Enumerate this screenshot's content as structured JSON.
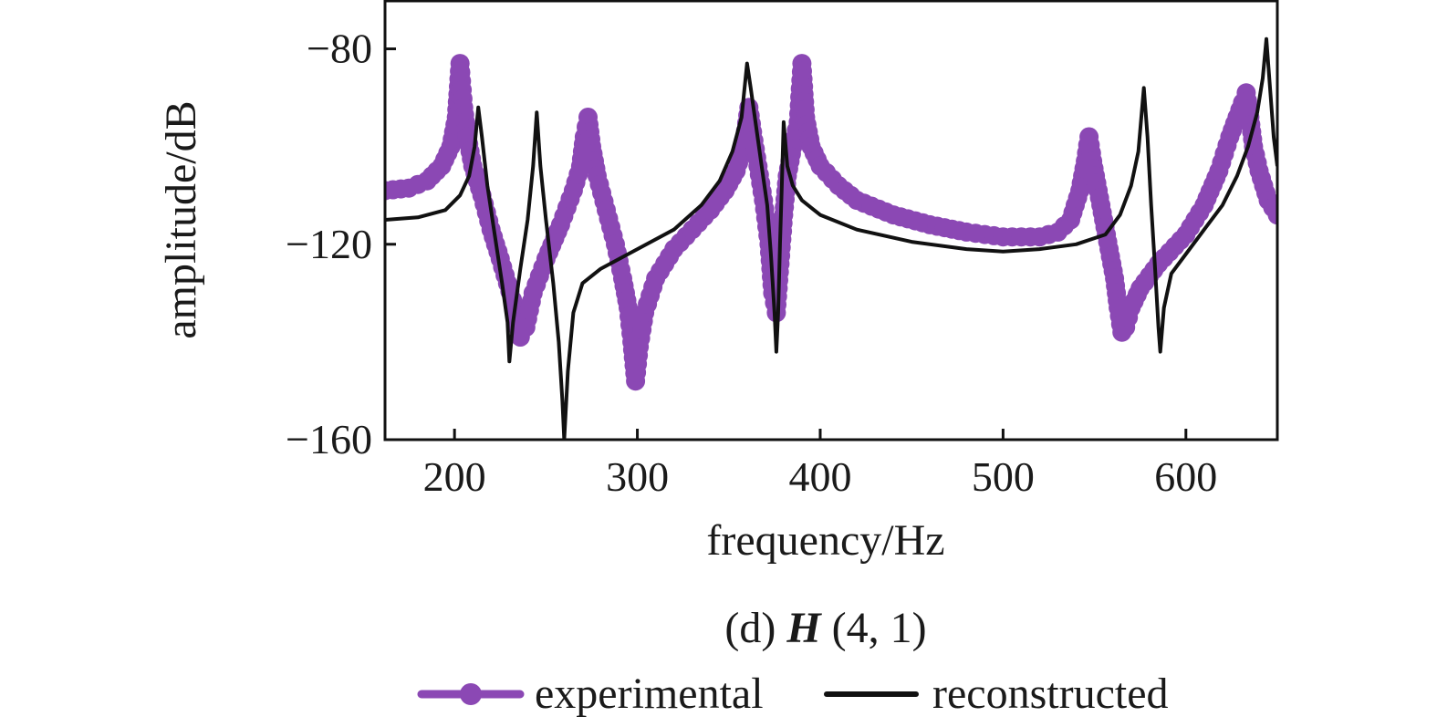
{
  "chart_data": {
    "type": "line",
    "xlabel": "frequency/Hz",
    "ylabel": "amplitude/dB",
    "caption": {
      "prefix": "(d) ",
      "symbol": "H",
      "suffix": " (4, 1)"
    },
    "xlim": [
      162,
      650
    ],
    "ylim": [
      -160,
      -70
    ],
    "x_ticks": [
      200,
      300,
      400,
      500,
      600
    ],
    "y_ticks": [
      -80,
      -120,
      -160
    ],
    "x_tick_labels": [
      "200",
      "300",
      "400",
      "500",
      "600"
    ],
    "y_tick_labels": [
      "−80",
      "−120",
      "−160"
    ],
    "grid": false,
    "legend": {
      "placement": "bottom",
      "entries": [
        "experimental",
        "reconstructed"
      ]
    },
    "colors": {
      "experimental": "#8b48b4",
      "reconstructed": "#111111"
    },
    "series": [
      {
        "name": "experimental",
        "style": "line-with-markers",
        "points": [
          [
            162,
            -109
          ],
          [
            175,
            -108.5
          ],
          [
            185,
            -107
          ],
          [
            193,
            -104
          ],
          [
            198,
            -100
          ],
          [
            201,
            -94
          ],
          [
            203,
            -83
          ],
          [
            205,
            -92
          ],
          [
            207,
            -98
          ],
          [
            210,
            -104
          ],
          [
            215,
            -110
          ],
          [
            220,
            -117
          ],
          [
            225,
            -123
          ],
          [
            229,
            -128
          ],
          [
            233,
            -133
          ],
          [
            236,
            -139
          ],
          [
            239,
            -137
          ],
          [
            243,
            -130
          ],
          [
            250,
            -123
          ],
          [
            258,
            -116
          ],
          [
            265,
            -109
          ],
          [
            269,
            -104
          ],
          [
            271,
            -98
          ],
          [
            273,
            -94
          ],
          [
            275,
            -100
          ],
          [
            278,
            -106
          ],
          [
            283,
            -113
          ],
          [
            288,
            -120
          ],
          [
            292,
            -127
          ],
          [
            295,
            -133
          ],
          [
            297,
            -140
          ],
          [
            299,
            -148
          ],
          [
            301,
            -141
          ],
          [
            304,
            -134
          ],
          [
            310,
            -127
          ],
          [
            320,
            -121
          ],
          [
            330,
            -117
          ],
          [
            340,
            -113
          ],
          [
            348,
            -109
          ],
          [
            354,
            -105
          ],
          [
            358,
            -100
          ],
          [
            361,
            -92
          ],
          [
            363,
            -97
          ],
          [
            366,
            -104
          ],
          [
            369,
            -111
          ],
          [
            372,
            -120
          ],
          [
            374,
            -130
          ],
          [
            376,
            -134
          ],
          [
            378,
            -124
          ],
          [
            380,
            -114
          ],
          [
            382,
            -106
          ],
          [
            385,
            -100
          ],
          [
            388,
            -95
          ],
          [
            390,
            -83
          ],
          [
            392,
            -94
          ],
          [
            395,
            -100
          ],
          [
            400,
            -104
          ],
          [
            410,
            -108
          ],
          [
            420,
            -111
          ],
          [
            440,
            -114
          ],
          [
            460,
            -116
          ],
          [
            480,
            -117.5
          ],
          [
            500,
            -118.5
          ],
          [
            520,
            -118.5
          ],
          [
            530,
            -117.5
          ],
          [
            537,
            -115
          ],
          [
            542,
            -109
          ],
          [
            545,
            -103
          ],
          [
            547,
            -98
          ],
          [
            549,
            -103
          ],
          [
            552,
            -109
          ],
          [
            555,
            -115
          ],
          [
            558,
            -121
          ],
          [
            561,
            -127
          ],
          [
            563,
            -133
          ],
          [
            565,
            -138
          ],
          [
            567,
            -137
          ],
          [
            570,
            -133
          ],
          [
            575,
            -129
          ],
          [
            585,
            -124
          ],
          [
            600,
            -118
          ],
          [
            610,
            -112
          ],
          [
            618,
            -105
          ],
          [
            624,
            -98
          ],
          [
            628,
            -94
          ],
          [
            631,
            -91
          ],
          [
            633,
            -89
          ],
          [
            635,
            -94
          ],
          [
            637,
            -100
          ],
          [
            640,
            -105
          ],
          [
            645,
            -111
          ],
          [
            650,
            -114
          ]
        ]
      },
      {
        "name": "reconstructed",
        "style": "line",
        "points": [
          [
            162,
            -115
          ],
          [
            180,
            -114.5
          ],
          [
            195,
            -113
          ],
          [
            203,
            -110
          ],
          [
            208,
            -106
          ],
          [
            211,
            -100
          ],
          [
            213,
            -92
          ],
          [
            215,
            -98
          ],
          [
            218,
            -108
          ],
          [
            222,
            -118
          ],
          [
            226,
            -128
          ],
          [
            229,
            -136
          ],
          [
            230,
            -144
          ],
          [
            232,
            -136
          ],
          [
            236,
            -125
          ],
          [
            240,
            -115
          ],
          [
            243,
            -104
          ],
          [
            245,
            -93
          ],
          [
            247,
            -104
          ],
          [
            250,
            -115
          ],
          [
            254,
            -128
          ],
          [
            257,
            -140
          ],
          [
            259,
            -152
          ],
          [
            260,
            -160
          ],
          [
            262,
            -146
          ],
          [
            265,
            -134
          ],
          [
            270,
            -128
          ],
          [
            280,
            -125
          ],
          [
            300,
            -121
          ],
          [
            320,
            -117
          ],
          [
            335,
            -112
          ],
          [
            345,
            -107
          ],
          [
            352,
            -101
          ],
          [
            357,
            -94
          ],
          [
            360,
            -83
          ],
          [
            362,
            -88
          ],
          [
            365,
            -96
          ],
          [
            368,
            -104
          ],
          [
            371,
            -112
          ],
          [
            373,
            -122
          ],
          [
            375,
            -134
          ],
          [
            376,
            -142
          ],
          [
            377,
            -134
          ],
          [
            378,
            -120
          ],
          [
            379,
            -108
          ],
          [
            380,
            -95
          ],
          [
            382,
            -104
          ],
          [
            385,
            -108
          ],
          [
            390,
            -111
          ],
          [
            400,
            -114
          ],
          [
            420,
            -117
          ],
          [
            450,
            -119.5
          ],
          [
            480,
            -121
          ],
          [
            500,
            -121.5
          ],
          [
            520,
            -121
          ],
          [
            540,
            -120
          ],
          [
            556,
            -118
          ],
          [
            564,
            -114
          ],
          [
            570,
            -108
          ],
          [
            574,
            -101
          ],
          [
            577,
            -88
          ],
          [
            579,
            -98
          ],
          [
            581,
            -112
          ],
          [
            583,
            -124
          ],
          [
            585,
            -137
          ],
          [
            586,
            -142
          ],
          [
            588,
            -133
          ],
          [
            592,
            -126
          ],
          [
            600,
            -122
          ],
          [
            610,
            -117
          ],
          [
            620,
            -112
          ],
          [
            628,
            -106
          ],
          [
            634,
            -100
          ],
          [
            639,
            -93
          ],
          [
            642,
            -86
          ],
          [
            644,
            -78
          ],
          [
            646,
            -88
          ],
          [
            648,
            -98
          ],
          [
            650,
            -104
          ]
        ]
      }
    ]
  }
}
